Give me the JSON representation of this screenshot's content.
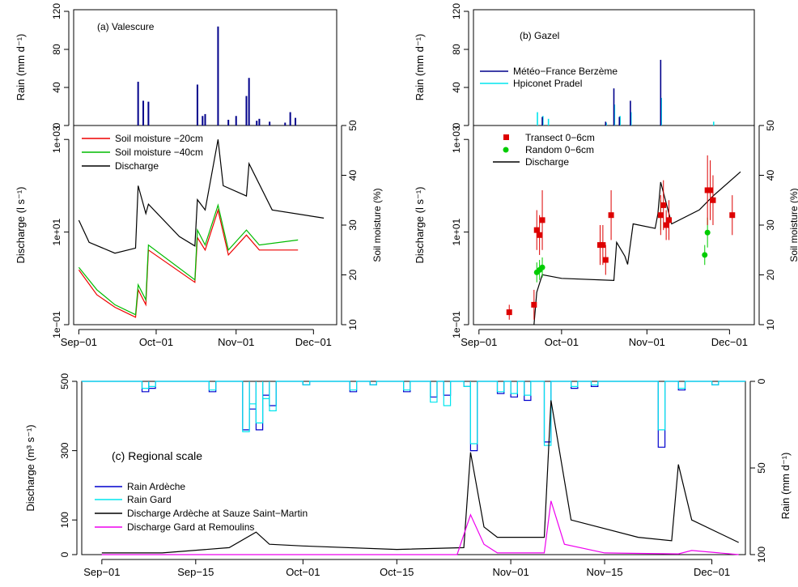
{
  "chart_data": [
    {
      "panel": "a",
      "type": "bar",
      "title": "(a) Valescure",
      "ylabel": "Rain (mm d⁻¹)",
      "ylim": [
        0,
        120
      ],
      "yticks": [
        "0",
        "40",
        "80",
        "120"
      ],
      "x": [
        "2007-09-24",
        "2007-09-26",
        "2007-09-28",
        "2007-10-17",
        "2007-10-19",
        "2007-10-20",
        "2007-10-25",
        "2007-10-29",
        "2007-11-01",
        "2007-11-05",
        "2007-11-06",
        "2007-11-09",
        "2007-11-10",
        "2007-11-14",
        "2007-11-20",
        "2007-11-22",
        "2007-11-24"
      ],
      "values": [
        46,
        26,
        25,
        43,
        10,
        12,
        104,
        6,
        10,
        31,
        50,
        5,
        7,
        4,
        3,
        14,
        8
      ],
      "color": "#00008b"
    },
    {
      "panel": "a",
      "type": "line",
      "xticks": [
        "Sep−01",
        "Oct−01",
        "Nov−01",
        "Dec−01"
      ],
      "ylabel": "Discharge (l s⁻¹)",
      "ylabel_right": "Soil moisture (%)",
      "y_log": true,
      "ylim": [
        0.1,
        2000
      ],
      "yticks": [
        "1e−01",
        "1e+01",
        "1e+03"
      ],
      "ylim_right": [
        10,
        50
      ],
      "yticks_right": [
        "10",
        "20",
        "30",
        "40",
        "50"
      ],
      "series": [
        {
          "name": "Soil moisture −20cm",
          "color": "#ee0000",
          "axis": "right",
          "x": [
            "2007-09-01",
            "2007-09-08",
            "2007-09-15",
            "2007-09-23",
            "2007-09-24",
            "2007-09-27",
            "2007-09-28",
            "2007-10-16",
            "2007-10-17",
            "2007-10-20",
            "2007-10-25",
            "2007-10-29",
            "2007-11-05",
            "2007-11-10",
            "2007-11-25"
          ],
          "y": [
            21,
            16,
            13.5,
            11.5,
            17,
            14,
            25,
            18.5,
            27.5,
            25,
            33,
            24,
            28,
            25,
            25
          ]
        },
        {
          "name": "Soil moisture −40cm",
          "color": "#00bb00",
          "axis": "right",
          "x": [
            "2007-09-01",
            "2007-09-08",
            "2007-09-15",
            "2007-09-23",
            "2007-09-24",
            "2007-09-27",
            "2007-09-28",
            "2007-10-16",
            "2007-10-17",
            "2007-10-20",
            "2007-10-25",
            "2007-10-29",
            "2007-11-05",
            "2007-11-10",
            "2007-11-25"
          ],
          "y": [
            21.5,
            17,
            14,
            12,
            18,
            15,
            26,
            19,
            29,
            26,
            34,
            25,
            29,
            26,
            27
          ]
        },
        {
          "name": "Discharge",
          "color": "#000000",
          "axis": "left",
          "x": [
            "2007-09-01",
            "2007-09-05",
            "2007-09-15",
            "2007-09-23",
            "2007-09-24",
            "2007-09-27",
            "2007-09-28",
            "2007-10-10",
            "2007-10-16",
            "2007-10-17",
            "2007-10-20",
            "2007-10-25",
            "2007-10-27",
            "2007-11-05",
            "2007-11-06",
            "2007-11-15",
            "2007-12-05"
          ],
          "y": [
            18,
            6,
            3.5,
            4.5,
            100,
            25,
            40,
            8,
            5,
            50,
            30,
            1000,
            100,
            60,
            300,
            30,
            20
          ]
        }
      ]
    },
    {
      "panel": "b",
      "type": "bar",
      "title": "(b) Gazel",
      "ylabel": "Rain (mm d⁻¹)",
      "ylim": [
        0,
        120
      ],
      "yticks": [
        "0",
        "40",
        "80",
        "120"
      ],
      "series": [
        {
          "name": "Météo−France Berzème",
          "color": "#00008b",
          "x": [
            "2007-09-24",
            "2007-10-17",
            "2007-10-20",
            "2007-10-22",
            "2007-10-26",
            "2007-11-06"
          ],
          "values": [
            9,
            4,
            39,
            9,
            26,
            69
          ]
        },
        {
          "name": "Hpiconet Pradel",
          "color": "#00e5ee",
          "x": [
            "2007-09-22",
            "2007-09-24",
            "2007-09-26",
            "2007-10-17",
            "2007-10-20",
            "2007-10-22",
            "2007-10-26",
            "2007-11-06",
            "2007-11-25"
          ],
          "values": [
            14,
            10,
            7,
            3,
            22,
            10,
            14,
            29,
            4
          ]
        }
      ]
    },
    {
      "panel": "b",
      "type": "scatter",
      "xticks": [
        "Sep−01",
        "Oct−01",
        "Nov−01",
        "Dec−01"
      ],
      "ylabel": "Discharge (l s⁻¹)",
      "ylabel_right": "Soil moisture (%)",
      "y_log": true,
      "ylim": [
        0.1,
        2000
      ],
      "yticks": [
        "1e−01",
        "1e+01",
        "1e+03"
      ],
      "ylim_right": [
        10,
        50
      ],
      "yticks_right": [
        "10",
        "20",
        "30",
        "40",
        "50"
      ],
      "series": [
        {
          "name": "Transect 0−6cm",
          "color": "#dd0000",
          "axis": "right",
          "x": [
            "2007-09-12",
            "2007-09-21",
            "2007-09-22",
            "2007-09-23",
            "2007-09-24",
            "2007-10-15",
            "2007-10-16",
            "2007-10-17",
            "2007-10-19",
            "2007-11-06",
            "2007-11-07",
            "2007-11-08",
            "2007-11-09",
            "2007-11-23",
            "2007-11-24",
            "2007-11-25",
            "2007-12-02"
          ],
          "y": [
            12.5,
            14,
            29,
            28,
            31,
            26,
            26,
            23,
            32,
            32,
            34,
            30,
            31,
            37,
            37,
            35,
            32
          ],
          "err": [
            1.5,
            3,
            4,
            4,
            6,
            4,
            4,
            3,
            5,
            4,
            5,
            3,
            4,
            7,
            6,
            5,
            4
          ]
        },
        {
          "name": "Random 0−6cm",
          "color": "#00cc00",
          "axis": "right",
          "x": [
            "2007-09-22",
            "2007-09-23",
            "2007-09-24",
            "2007-11-06",
            "2007-11-22",
            "2007-11-23"
          ],
          "y": [
            20.5,
            21,
            21.5,
            32,
            24,
            28.5
          ],
          "err": [
            2,
            2,
            2,
            3,
            2,
            3
          ]
        },
        {
          "name": "Discharge",
          "color": "#000000",
          "type": "line",
          "axis": "left",
          "x": [
            "2007-09-21",
            "2007-09-22",
            "2007-09-24",
            "2007-10-01",
            "2007-10-20",
            "2007-10-21",
            "2007-10-24",
            "2007-10-25",
            "2007-10-27",
            "2007-11-04",
            "2007-11-05",
            "2007-11-06",
            "2007-11-10",
            "2007-11-20",
            "2007-11-25",
            "2007-12-05"
          ],
          "y": [
            0.1,
            0.5,
            1.2,
            1.0,
            0.9,
            6,
            3,
            2,
            15,
            12,
            25,
            120,
            15,
            30,
            60,
            200
          ]
        }
      ]
    },
    {
      "panel": "c",
      "type": "line",
      "title": "(c) Regional scale",
      "xticks": [
        "Sep−01",
        "Sep−15",
        "Oct−01",
        "Oct−15",
        "Nov−01",
        "Nov−15",
        "Dec−01"
      ],
      "ylabel": "Discharge (m³ s⁻¹)",
      "ylabel_right": "Rain (mm d⁻¹)",
      "ylim": [
        0,
        500
      ],
      "yticks": [
        "0",
        "100",
        "300",
        "500"
      ],
      "ylim_right": [
        0,
        100
      ],
      "yticks_right": [
        "0",
        "50",
        "100"
      ],
      "series": [
        {
          "name": "Rain Ardèche",
          "color": "#0000cd",
          "type": "step",
          "axis": "right",
          "x": [
            "2007-09-07",
            "2007-09-08",
            "2007-09-17",
            "2007-09-22",
            "2007-09-23",
            "2007-09-24",
            "2007-09-25",
            "2007-09-26",
            "2007-10-01",
            "2007-10-08",
            "2007-10-11",
            "2007-10-16",
            "2007-10-20",
            "2007-10-22",
            "2007-10-25",
            "2007-10-26",
            "2007-10-30",
            "2007-11-01",
            "2007-11-03",
            "2007-11-06",
            "2007-11-10",
            "2007-11-13",
            "2007-11-23",
            "2007-11-26",
            "2007-12-01"
          ],
          "y": [
            6,
            4,
            6,
            28,
            16,
            28,
            8,
            14,
            2,
            6,
            2,
            6,
            9,
            8,
            3,
            40,
            7,
            9,
            11,
            35,
            4,
            3,
            38,
            5,
            2
          ]
        },
        {
          "name": "Rain Gard",
          "color": "#00e5ee",
          "type": "step",
          "axis": "right",
          "x": [
            "2007-09-07",
            "2007-09-08",
            "2007-09-17",
            "2007-09-22",
            "2007-09-23",
            "2007-09-24",
            "2007-09-25",
            "2007-09-26",
            "2007-10-01",
            "2007-10-08",
            "2007-10-11",
            "2007-10-16",
            "2007-10-20",
            "2007-10-22",
            "2007-10-25",
            "2007-10-26",
            "2007-10-30",
            "2007-11-01",
            "2007-11-03",
            "2007-11-06",
            "2007-11-10",
            "2007-11-13",
            "2007-11-23",
            "2007-11-26",
            "2007-12-01"
          ],
          "y": [
            4,
            3,
            5,
            29,
            13,
            24,
            10,
            17,
            2,
            5,
            2,
            5,
            12,
            14,
            3,
            36,
            6,
            7,
            8,
            37,
            3,
            2,
            28,
            4,
            2
          ]
        },
        {
          "name": "Discharge Ardèche at Sauze Saint−Martin",
          "color": "#000000",
          "axis": "left",
          "x": [
            "2007-09-01",
            "2007-09-10",
            "2007-09-20",
            "2007-09-24",
            "2007-09-26",
            "2007-10-01",
            "2007-10-15",
            "2007-10-25",
            "2007-10-26",
            "2007-10-28",
            "2007-10-30",
            "2007-11-06",
            "2007-11-07",
            "2007-11-10",
            "2007-11-20",
            "2007-11-25",
            "2007-11-26",
            "2007-11-28",
            "2007-12-05"
          ],
          "y": [
            5,
            5,
            20,
            65,
            30,
            25,
            15,
            20,
            295,
            80,
            50,
            50,
            445,
            100,
            50,
            40,
            260,
            100,
            35
          ]
        },
        {
          "name": "Discharge Gard at Remoulins",
          "color": "#ee00ee",
          "axis": "left",
          "x": [
            "2007-09-01",
            "2007-10-24",
            "2007-10-26",
            "2007-10-28",
            "2007-10-30",
            "2007-11-06",
            "2007-11-07",
            "2007-11-09",
            "2007-11-15",
            "2007-11-26",
            "2007-11-28",
            "2007-12-05"
          ],
          "y": [
            0,
            0,
            115,
            30,
            5,
            5,
            155,
            30,
            5,
            2,
            12,
            0
          ]
        }
      ]
    }
  ]
}
